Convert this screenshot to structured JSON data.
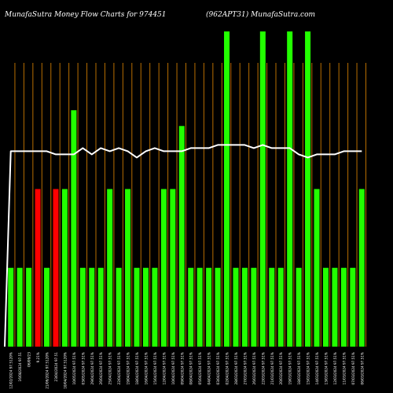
{
  "title_left": "MunafaSutra  Money Flow  Charts for 974451",
  "title_right": "(962APT31) MunafaSutra.com",
  "chart_data": {
    "type": "bar",
    "colors": {
      "background": "#000000",
      "up": "#22ff00",
      "down": "#ff0000",
      "grid": "#b86e00",
      "line": "#ffffff",
      "text": "#ffffff"
    },
    "ylim": [
      0,
      100
    ],
    "categories": [
      "12/02/2024 97.5120%",
      "16/08/2024 97.51",
      "06/09/23",
      "9.21%",
      "21/06/2024 97.5120%",
      "23/04/2024 97.51",
      "10/04/2024 97.5120%",
      "10/05/2024 97.51%",
      "03/05/2024 97.51%",
      "29/04/2024 97.51%",
      "26/04/2024 97.51%",
      "25/04/2024 97.51%",
      "22/04/2024 97.51%",
      "19/04/2024 97.51%",
      "18/04/2024 97.51%",
      "16/04/2024 97.51%",
      "15/04/2024 97.51%",
      "12/04/2024 97.51%",
      "10/04/2024 97.51%",
      "09/04/2024 97.51%",
      "08/04/2024 97.51%",
      "05/04/2024 97.51%",
      "04/04/2024 97.51%",
      "03/04/2024 97.51%",
      "02/04/2024 97.51%",
      "28/03/2024 97.51%",
      "27/03/2024 97.51%",
      "26/03/2024 97.51%",
      "22/03/2024 97.51%",
      "21/03/2024 97.51%",
      "20/03/2024 97.51%",
      "19/03/2024 97.51%",
      "18/03/2024 97.51%",
      "15/03/2024 97.51%",
      "14/03/2024 97.51%",
      "13/03/2024 97.51%",
      "12/03/2024 97.51%",
      "11/03/2024 97.51%",
      "07/03/2024 97.51%",
      "06/03/2024 97.51%"
    ],
    "values": [
      25,
      25,
      25,
      50,
      25,
      50,
      50,
      75,
      25,
      25,
      25,
      50,
      25,
      50,
      25,
      25,
      25,
      50,
      50,
      70,
      25,
      25,
      25,
      25,
      100,
      25,
      25,
      25,
      100,
      25,
      25,
      100,
      25,
      100,
      50,
      25,
      25,
      25,
      25,
      50
    ],
    "directions": [
      "up",
      "up",
      "up",
      "down",
      "up",
      "down",
      "up",
      "up",
      "up",
      "up",
      "up",
      "up",
      "up",
      "up",
      "up",
      "up",
      "up",
      "up",
      "up",
      "up",
      "up",
      "up",
      "up",
      "up",
      "up",
      "up",
      "up",
      "up",
      "up",
      "up",
      "up",
      "up",
      "up",
      "up",
      "up",
      "up",
      "up",
      "up",
      "up",
      "up"
    ],
    "line_values": [
      62,
      62,
      62,
      62,
      62,
      61,
      61,
      61,
      63,
      61,
      63,
      62,
      63,
      62,
      60,
      62,
      63,
      62,
      62,
      62,
      63,
      63,
      63,
      64,
      64,
      64,
      64,
      63,
      64,
      63,
      63,
      63,
      61,
      60,
      61,
      61,
      61,
      62,
      62,
      62
    ],
    "line_start_value": 0
  }
}
